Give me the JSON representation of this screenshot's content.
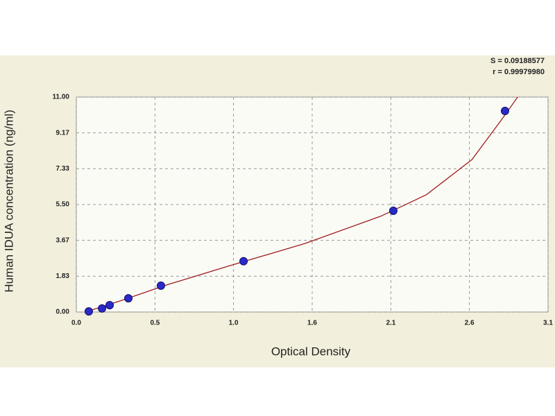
{
  "chart_data": {
    "type": "scatter",
    "annotations": [
      "S = 0.09188577",
      "r = 0.99979980"
    ],
    "x_label": "Optical Density",
    "y_label": "Human IDUA concentration (ng/ml)",
    "x": [
      0.082,
      0.169,
      0.219,
      0.342,
      0.556,
      1.099,
      2.083,
      2.817
    ],
    "values": [
      0.03,
      0.18,
      0.35,
      0.7,
      1.35,
      2.6,
      5.18,
      10.29
    ],
    "color": "#2a2ac8",
    "curve": {
      "color": "#a01c1c",
      "x": [
        0.06,
        0.3,
        0.6,
        1.0,
        1.5,
        2.0,
        2.3,
        2.6,
        2.8,
        2.9
      ],
      "y": [
        0.0,
        0.6,
        1.4,
        2.35,
        3.5,
        4.9,
        6.0,
        7.8,
        9.9,
        11.0
      ]
    },
    "xlim": [
      0,
      3.1
    ],
    "ylim": [
      0,
      11
    ],
    "xticks": [
      {
        "value": 0,
        "label": "0.0"
      },
      {
        "value": 0.517,
        "label": "0.5"
      },
      {
        "value": 1.033,
        "label": "1.0"
      },
      {
        "value": 1.55,
        "label": "1.6"
      },
      {
        "value": 2.067,
        "label": "2.1"
      },
      {
        "value": 2.583,
        "label": "2.6"
      },
      {
        "value": 3.1,
        "label": "3.1"
      }
    ],
    "yticks": [
      {
        "value": 0,
        "label": "0.00"
      },
      {
        "value": 1.833,
        "label": "1.83"
      },
      {
        "value": 3.667,
        "label": "3.67"
      },
      {
        "value": 5.5,
        "label": "5.50"
      },
      {
        "value": 7.333,
        "label": "7.33"
      },
      {
        "value": 9.167,
        "label": "9.17"
      },
      {
        "value": 11,
        "label": "11.00"
      }
    ],
    "grid": true
  }
}
